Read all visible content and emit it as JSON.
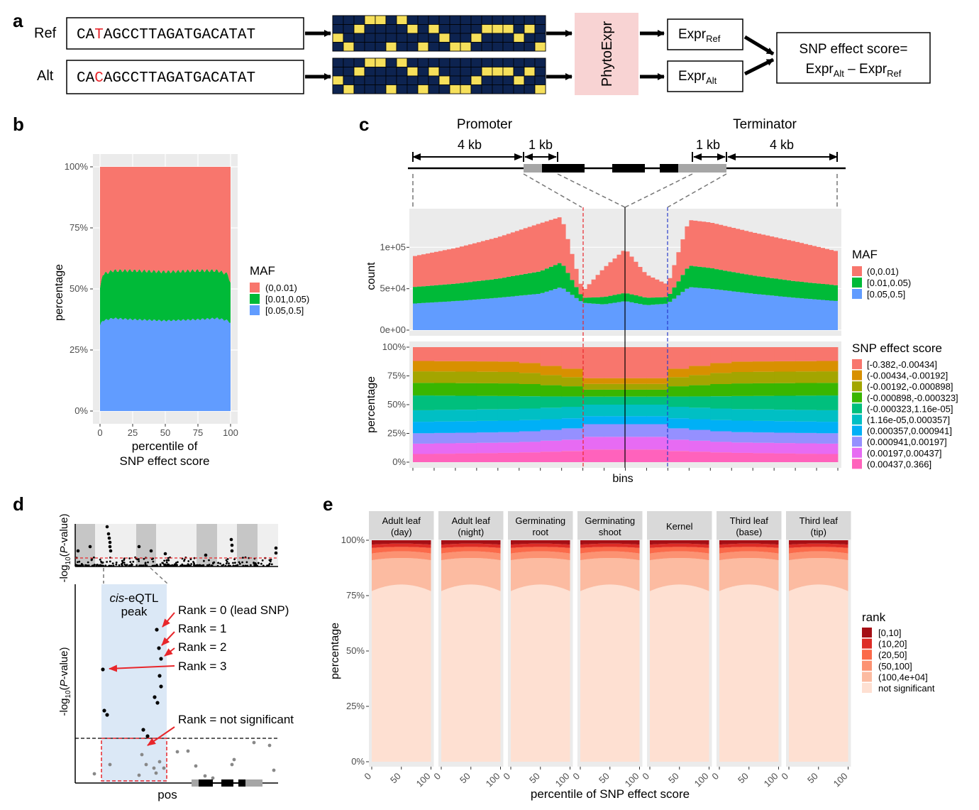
{
  "panel_a": {
    "letter": "a",
    "ref_label": "Ref",
    "alt_label": "Alt",
    "ref_seq": {
      "pre": "CA",
      "snp": "T",
      "post": "AGCCTTAGATGACATAT"
    },
    "alt_seq": {
      "pre": "CA",
      "snp": "C",
      "post": "AGCCTTAGATGACATAT"
    },
    "model_label": "PhytoExpr",
    "expr_ref": {
      "base": "Expr",
      "sub": "Ref"
    },
    "expr_alt": {
      "base": "Expr",
      "sub": "Alt"
    },
    "score_line1": "SNP effect score=",
    "score_line2": {
      "t1": "Expr",
      "s1": "Alt",
      "op": " – Expr",
      "s2": "Ref"
    },
    "colors": {
      "cell_bg": "#0d2350",
      "cell_on": "#f6e05b",
      "snp": "#e8262b",
      "model_bg": "#f8d3d3"
    }
  },
  "panel_b": {
    "letter": "b",
    "ylabel": "percentage",
    "xlabel_1": "percentile of",
    "xlabel_2": "SNP effect score",
    "legend_title": "MAF",
    "yticks": [
      "0%",
      "25%",
      "50%",
      "75%",
      "100%"
    ],
    "xticks": [
      "0",
      "25",
      "50",
      "75",
      "100"
    ],
    "chart_data": {
      "type": "area",
      "stacked": true,
      "series": [
        {
          "name": "[0.05,0.5]",
          "color": "#619cff",
          "x": [
            0,
            2,
            10,
            25,
            50,
            75,
            90,
            98,
            100
          ],
          "values": [
            0.35,
            0.37,
            0.38,
            0.375,
            0.37,
            0.375,
            0.38,
            0.37,
            0.36
          ]
        },
        {
          "name": "[0.01,0.05)",
          "color": "#00ba38",
          "x": [
            0,
            2,
            10,
            25,
            50,
            75,
            90,
            98,
            100
          ],
          "values": [
            0.15,
            0.19,
            0.195,
            0.2,
            0.2,
            0.2,
            0.195,
            0.19,
            0.16
          ]
        },
        {
          "name": "(0,0.01)",
          "color": "#f8766d",
          "x": [
            0,
            2,
            10,
            25,
            50,
            75,
            90,
            98,
            100
          ],
          "values": [
            0.5,
            0.44,
            0.425,
            0.425,
            0.43,
            0.425,
            0.425,
            0.44,
            0.48
          ]
        }
      ],
      "legend_order": [
        "(0,0.01)",
        "[0.01,0.05)",
        "[0.05,0.5]"
      ]
    }
  },
  "panel_c": {
    "letter": "c",
    "promoter": "Promoter",
    "terminator": "Terminator",
    "kb4_left": "4 kb",
    "kb1_left": "1 kb",
    "kb1_right": "1 kb",
    "kb4_right": "4 kb",
    "count_ylabel": "count",
    "pct_ylabel": "percentage",
    "xlabel": "bins",
    "count_yticks": [
      "0e+00",
      "5e+04",
      "1e+05"
    ],
    "pct_yticks": [
      "0%",
      "25%",
      "50%",
      "75%",
      "100%"
    ],
    "maf_legend_title": "MAF",
    "maf_legend": [
      {
        "label": "(0,0.01)",
        "color": "#f8766d"
      },
      {
        "label": "[0.01,0.05)",
        "color": "#00ba38"
      },
      {
        "label": "[0.05,0.5]",
        "color": "#619cff"
      }
    ],
    "score_legend_title": "SNP effect score",
    "score_legend": [
      {
        "label": "[-0.382,-0.00434]",
        "color": "#f8766d"
      },
      {
        "label": "(-0.00434,-0.00192]",
        "color": "#d89000"
      },
      {
        "label": "(-0.00192,-0.000898]",
        "color": "#a3a500"
      },
      {
        "label": "(-0.000898,-0.000323]",
        "color": "#39b600"
      },
      {
        "label": "(-0.000323,1.16e-05]",
        "color": "#00bf7d"
      },
      {
        "label": "(1.16e-05,0.000357]",
        "color": "#00bfc4"
      },
      {
        "label": "(0.000357,0.000941]",
        "color": "#00b0f6"
      },
      {
        "label": "(0.000941,0.00197]",
        "color": "#9590ff"
      },
      {
        "label": "(0.00197,0.00437]",
        "color": "#e76bf3"
      },
      {
        "label": "(0.00437,0.366]",
        "color": "#ff62bc"
      }
    ],
    "chart_data": [
      {
        "type": "area",
        "stacked": true,
        "x_positions": [
          0,
          0.1,
          0.2,
          0.3,
          0.35,
          0.4,
          0.45,
          0.5,
          0.55,
          0.6,
          0.65,
          0.7,
          0.8,
          0.9,
          1.0
        ],
        "series": [
          {
            "name": "[0.05,0.5]",
            "values": [
              32000,
              35000,
              39000,
              44000,
              52000,
              33000,
              31000,
              35000,
              30000,
              32000,
              52000,
              50000,
              44000,
              39000,
              35000
            ]
          },
          {
            "name": "[0.01,0.05)",
            "values": [
              20000,
              21000,
              23000,
              27000,
              30000,
              6000,
              9000,
              10000,
              9000,
              8000,
              26000,
              25000,
              22000,
              20000,
              19000
            ]
          },
          {
            "name": "(0,0.01)",
            "values": [
              37000,
              43000,
              50000,
              58000,
              55000,
              8000,
              35000,
              53000,
              28000,
              15000,
              55000,
              55000,
              52000,
              48000,
              41000
            ]
          }
        ],
        "ylim": [
          0,
          150000
        ]
      },
      {
        "type": "area",
        "stacked": true,
        "side_boundaries_pct": [
          0.09,
          0.18,
          0.27,
          0.37,
          0.47,
          0.57,
          0.68,
          0.78,
          0.87
        ],
        "center_boundaries_pct": [
          0.11,
          0.22,
          0.33,
          0.4,
          0.5,
          0.57,
          0.63,
          0.68,
          0.73
        ]
      }
    ]
  },
  "panel_d": {
    "letter": "d",
    "ylabel_pre": "-log",
    "ylabel_sub": "10",
    "ylabel_open": "(",
    "ylabel_italic": "P",
    "ylabel_post": "-value)",
    "peak_line1_italic": "cis",
    "peak_line1_rest": "-eQTL",
    "peak_line2": "peak",
    "rank0": "Rank = 0 (lead SNP)",
    "rank1": "Rank = 1",
    "rank2": "Rank = 2",
    "rank3": "Rank = 3",
    "rank_ns": "Rank = not significant",
    "xlabel": "pos"
  },
  "panel_e": {
    "letter": "e",
    "ylabel": "percentage",
    "xlabel": "percentile of SNP effect score",
    "yticks": [
      "0%",
      "25%",
      "50%",
      "75%",
      "100%"
    ],
    "xticks": [
      "0",
      "50",
      "100"
    ],
    "facets": [
      {
        "l1": "Adult leaf",
        "l2": "(day)"
      },
      {
        "l1": "Adult leaf",
        "l2": "(night)"
      },
      {
        "l1": "Germinating",
        "l2": "root"
      },
      {
        "l1": "Germinating",
        "l2": "shoot"
      },
      {
        "l1": "Kernel",
        "l2": ""
      },
      {
        "l1": "Third leaf",
        "l2": "(base)"
      },
      {
        "l1": "Third leaf",
        "l2": "(tip)"
      }
    ],
    "legend_title": "rank",
    "legend": [
      {
        "label": "[0,10]",
        "color": "#a50f15"
      },
      {
        "label": "(10,20]",
        "color": "#de2d26"
      },
      {
        "label": "(20,50]",
        "color": "#fb6a4a"
      },
      {
        "label": "(50,100]",
        "color": "#fc9272"
      },
      {
        "label": "(100,4e+04]",
        "color": "#fcbba1"
      },
      {
        "label": "not significant",
        "color": "#fee0d2"
      }
    ],
    "chart_data": {
      "type": "area",
      "stacked": true,
      "x": [
        0,
        50,
        100
      ],
      "series": [
        {
          "name": "not significant",
          "values_edge": 0.77,
          "values_center": 0.8
        },
        {
          "name": "(100,4e+04]",
          "values_edge": 0.14,
          "values_center": 0.12
        },
        {
          "name": "(50,100]",
          "values_edge": 0.03,
          "values_center": 0.03
        },
        {
          "name": "(20,50]",
          "values_edge": 0.025,
          "values_center": 0.02
        },
        {
          "name": "(10,20]",
          "values_edge": 0.015,
          "values_center": 0.015
        },
        {
          "name": "[0,10]",
          "values_edge": 0.02,
          "values_center": 0.015
        }
      ]
    }
  }
}
